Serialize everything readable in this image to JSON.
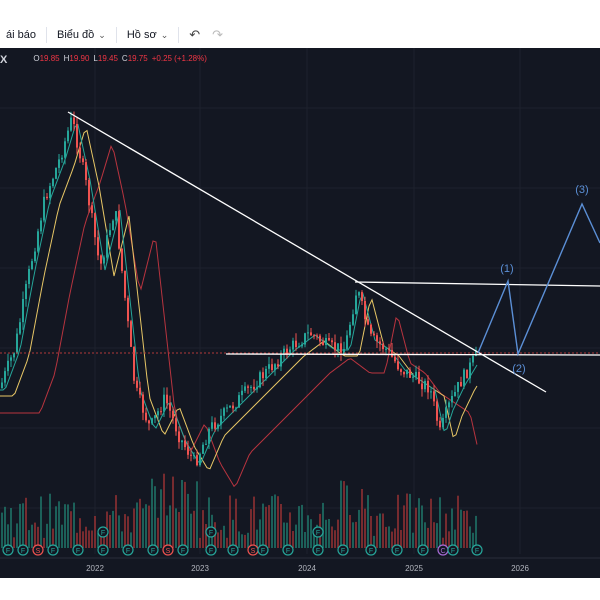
{
  "toolbar": {
    "alert_label": "ái báo",
    "chart_label": "Biểu đồ",
    "profile_label": "Hồ sơ",
    "undo_icon": "undo-icon",
    "redo_icon": "redo-icon"
  },
  "legend": {
    "symbol": "X",
    "open_label": "O",
    "open_value": "19.85",
    "high_label": "H",
    "high_value": "19.90",
    "low_label": "L",
    "low_value": "19.45",
    "close_label": "C",
    "close_value": "19.75",
    "change": "+0.25 (+1.28%)"
  },
  "chart_data": {
    "type": "candlestick",
    "x_tick_labels": [
      "2022",
      "2023",
      "2024",
      "2025",
      "2026"
    ],
    "wave_labels": [
      "(1)",
      "(2)",
      "(3)"
    ],
    "event_markers": [
      "F",
      "S",
      "D",
      "C"
    ],
    "colors": {
      "background": "#131722",
      "up": "#26a69a",
      "down": "#ef5350",
      "trendline": "#ffffff",
      "wave_projection": "#5b8fd6",
      "ma_fast": "#26a69a",
      "ma_mid": "#e8c766",
      "ma_slow": "#b8343f",
      "reference_line": "#b23a3a"
    },
    "grid": true,
    "legend_position": "top-left"
  }
}
